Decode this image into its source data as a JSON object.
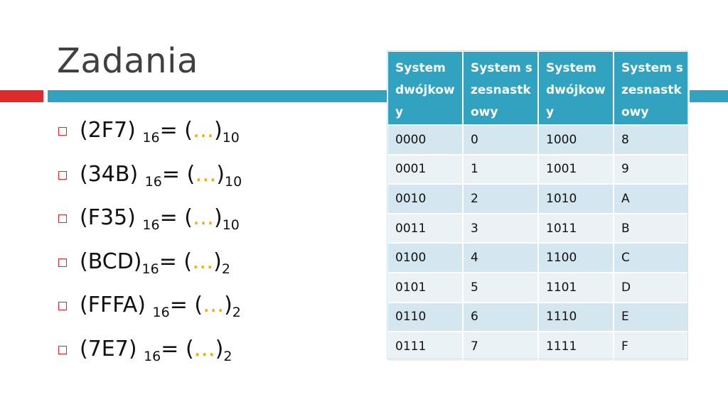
{
  "title": "Zadania",
  "tasks": [
    {
      "number": "(2F7)",
      "base_from": "16",
      "equals": "= (",
      "dots": "…",
      "close": ")",
      "base_to": "10"
    },
    {
      "number": "(34B)",
      "base_from": "16",
      "equals": "= (",
      "dots": "…",
      "close": ")",
      "base_to": "10"
    },
    {
      "number": "(F35)",
      "base_from": "16",
      "equals": "= (",
      "dots": "…",
      "close": ")",
      "base_to": "10"
    },
    {
      "number": "(BCD)",
      "base_from": "16",
      "equals": "= (",
      "dots": "…",
      "close": ")",
      "base_to": "2"
    },
    {
      "number": "(FFFA)",
      "base_from": "16",
      "equals": "= (",
      "dots": "…",
      "close": ")",
      "base_to": "2"
    },
    {
      "number": "(7E7)",
      "base_from": "16",
      "equals": "= (",
      "dots": "…",
      "close": ")",
      "base_to": "2"
    }
  ],
  "table": {
    "headers": [
      "System dwójkowy",
      "System szesnastkowy",
      "System dwójkowy",
      "System szesnastkowy"
    ],
    "rows": [
      [
        "0000",
        "0",
        "1000",
        "8"
      ],
      [
        "0001",
        "1",
        "1001",
        "9"
      ],
      [
        "0010",
        "2",
        "1010",
        "A"
      ],
      [
        "0011",
        "3",
        "1011",
        "B"
      ],
      [
        "0100",
        "4",
        "1100",
        "C"
      ],
      [
        "0101",
        "5",
        "1101",
        "D"
      ],
      [
        "0110",
        "6",
        "1110",
        "E"
      ],
      [
        "0111",
        "7",
        "1111",
        "F"
      ]
    ]
  },
  "colors": {
    "accent_blue": "#31a2bf",
    "accent_red": "#de2a2a",
    "dots_yellow": "#f0a800",
    "row_dark": "#d4e6ef",
    "row_light": "#eaf2f6"
  }
}
